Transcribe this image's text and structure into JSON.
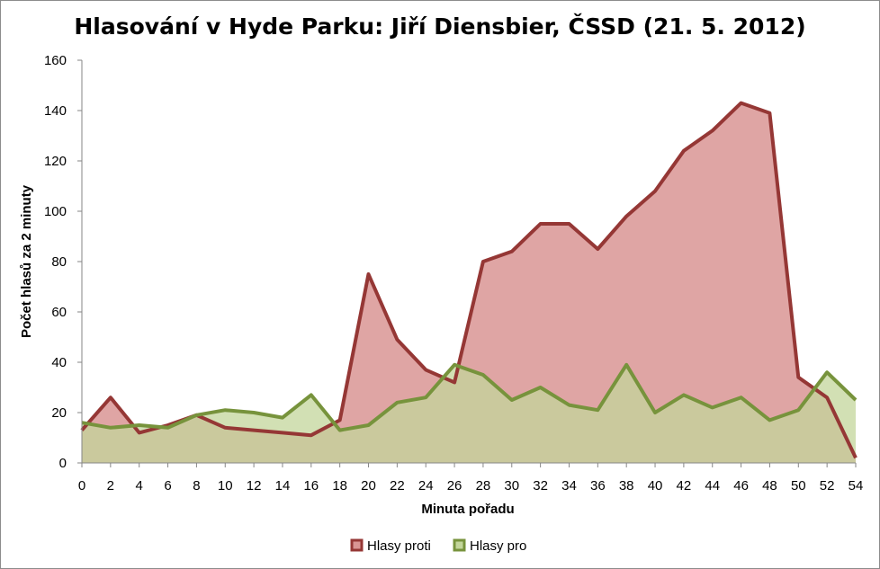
{
  "chart_data": {
    "type": "area",
    "title": "Hlasování v Hyde Parku: Jiří Diensbier, ČSSD (21. 5. 2012)",
    "xlabel": "Minuta pořadu",
    "ylabel": "Počet hlasů za 2 minuty",
    "x": [
      0,
      2,
      4,
      6,
      8,
      10,
      12,
      14,
      16,
      18,
      20,
      22,
      24,
      26,
      28,
      30,
      32,
      34,
      36,
      38,
      40,
      42,
      44,
      46,
      48,
      50,
      52,
      54
    ],
    "xlim": [
      0,
      54
    ],
    "ylim": [
      0,
      160
    ],
    "yticks": [
      0,
      20,
      40,
      60,
      80,
      100,
      120,
      140,
      160
    ],
    "grid": false,
    "legend_position": "bottom",
    "series": [
      {
        "name": "Hlasy proti",
        "values": [
          13,
          26,
          12,
          15,
          19,
          14,
          13,
          12,
          11,
          17,
          75,
          49,
          37,
          32,
          80,
          84,
          95,
          95,
          85,
          98,
          108,
          124,
          132,
          143,
          139,
          34,
          26,
          2
        ],
        "line_color": "#953735",
        "fill_color": "#d99594",
        "fill_opacity": 0.85
      },
      {
        "name": "Hlasy pro",
        "values": [
          16,
          14,
          15,
          14,
          19,
          21,
          20,
          18,
          27,
          13,
          15,
          24,
          26,
          39,
          35,
          25,
          30,
          23,
          21,
          39,
          20,
          27,
          22,
          26,
          17,
          21,
          36,
          25
        ],
        "line_color": "#77933c",
        "fill_color": "#c3d69b",
        "fill_opacity": 0.75
      }
    ]
  }
}
